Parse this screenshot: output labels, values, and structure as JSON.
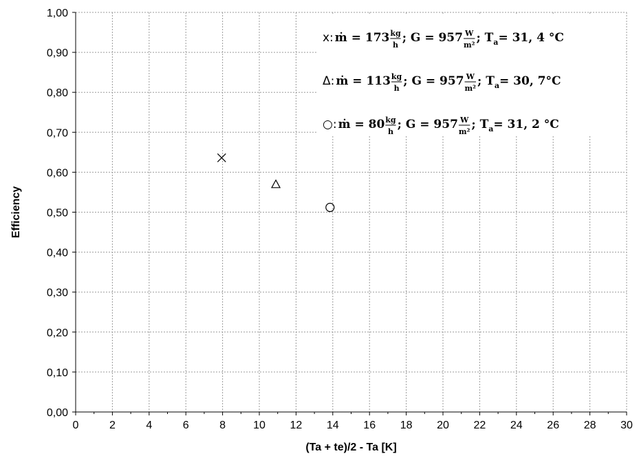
{
  "chart_data": {
    "type": "scatter",
    "xlabel": "(Ta + te)/2 - Ta [K]",
    "ylabel": "Efficiency",
    "xlim": [
      0,
      30
    ],
    "ylim": [
      0,
      1
    ],
    "x_ticks": [
      "0",
      "2",
      "4",
      "6",
      "8",
      "10",
      "12",
      "14",
      "16",
      "18",
      "20",
      "22",
      "24",
      "26",
      "28",
      "30"
    ],
    "y_ticks": [
      "0,00",
      "0,10",
      "0,20",
      "0,30",
      "0,40",
      "0,50",
      "0,60",
      "0,70",
      "0,80",
      "0,90",
      "1,00"
    ],
    "grid": true,
    "legend_position": "top-right",
    "series": [
      {
        "marker": "x",
        "symbol": "x",
        "x": [
          7.95
        ],
        "y": [
          0.636
        ],
        "legend": {
          "sym": "x:",
          "mdot_pre": " ṁ = 173 ",
          "mdot_num": "kg",
          "mdot_den": "h",
          "g_pre": "; G = 957 ",
          "g_num": "W",
          "g_den": "m²",
          "t_text": " ; T",
          "t_sub": "a",
          "t_val": " = 31, 4 °C"
        }
      },
      {
        "marker": "triangle",
        "symbol": "Δ",
        "x": [
          10.9
        ],
        "y": [
          0.57
        ],
        "legend": {
          "sym": "Δ:",
          "mdot_pre": " ṁ = 113 ",
          "mdot_num": "kg",
          "mdot_den": "h",
          "g_pre": " ;  G = 957 ",
          "g_num": "W",
          "g_den": "m²",
          "t_text": " ; T",
          "t_sub": "a",
          "t_val": " = 30, 7°C"
        }
      },
      {
        "marker": "circle",
        "symbol": "○",
        "x": [
          13.85
        ],
        "y": [
          0.512
        ],
        "legend": {
          "sym": "○:",
          "mdot_pre": " ṁ = 80 ",
          "mdot_num": "kg",
          "mdot_den": "h",
          "g_pre": " ; G = 957 ",
          "g_num": "W",
          "g_den": "m²",
          "t_text": " ; T",
          "t_sub": "a",
          "t_val": " = 31, 2 °C"
        }
      }
    ]
  }
}
